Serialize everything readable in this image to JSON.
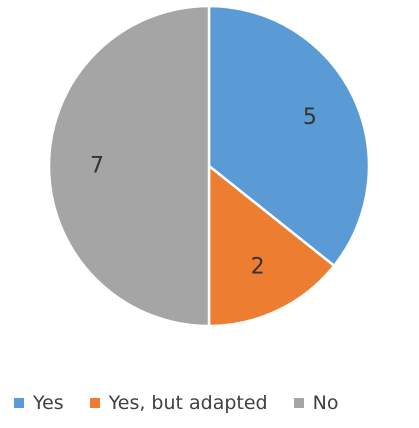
{
  "chart_data": {
    "type": "pie",
    "title": "",
    "categories": [
      "Yes",
      "Yes, but adapted",
      "No"
    ],
    "values": [
      5,
      2,
      7
    ],
    "colors": [
      "#5b9bd5",
      "#ed7d31",
      "#a5a5a5"
    ],
    "data_labels": [
      "5",
      "2",
      "7"
    ],
    "start_angle_deg": 0,
    "direction": "clockwise",
    "legend": {
      "position": "bottom",
      "entries": [
        "Yes",
        "Yes, but adapted",
        "No"
      ]
    }
  }
}
